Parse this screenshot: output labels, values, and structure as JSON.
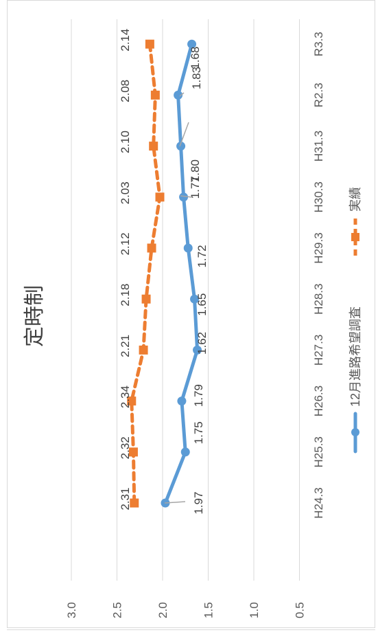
{
  "chart_data": {
    "type": "line",
    "title": "定時制",
    "categories": [
      "H24.3",
      "H25.3",
      "H26.3",
      "H27.3",
      "H28.3",
      "H29.3",
      "H30.3",
      "H31.3",
      "R2.3",
      "R3.3"
    ],
    "series": [
      {
        "name": "12月進路希望調査",
        "values": [
          1.97,
          1.75,
          1.79,
          1.62,
          1.65,
          1.72,
          1.77,
          1.8,
          1.83,
          1.68
        ],
        "color": "#5b9bd5",
        "style": "solid",
        "marker": "circle"
      },
      {
        "name": "実績",
        "values": [
          2.31,
          2.32,
          2.34,
          2.21,
          2.18,
          2.12,
          2.03,
          2.1,
          2.08,
          2.14
        ],
        "color": "#ed7d31",
        "style": "dashed",
        "marker": "square"
      }
    ],
    "value_labels": {
      "series_0": [
        "1.97",
        "1.75",
        "1.79",
        "1.62",
        "1.65",
        "1.72",
        "1.77",
        "1.80",
        "1.83",
        "1.68"
      ],
      "series_1": [
        "2.31",
        "2.32",
        "2.34",
        "2.21",
        "2.18",
        "2.12",
        "2.03",
        "2.10",
        "2.08",
        "2.14"
      ]
    },
    "value_axis": {
      "ticks": [
        "3.0",
        "2.5",
        "2.0",
        "1.5",
        "1.0",
        "0.5"
      ],
      "tick_values": [
        3.0,
        2.5,
        2.0,
        1.5,
        1.0,
        0.5
      ],
      "range": [
        0.5,
        3.0
      ]
    },
    "gridlines": true,
    "legend_position": "bottom",
    "orientation": "rotated 90 degrees"
  }
}
